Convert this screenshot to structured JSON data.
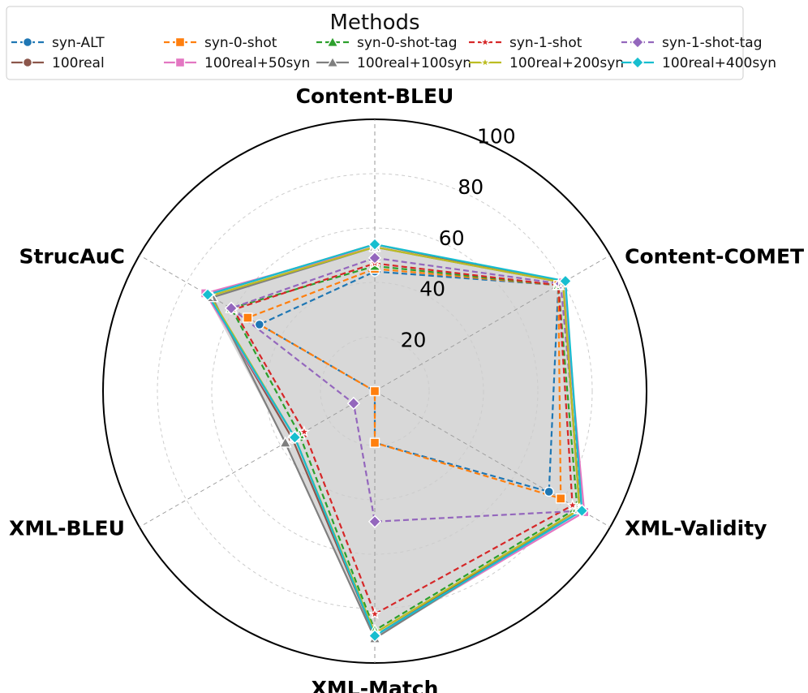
{
  "chart_data": {
    "type": "radar",
    "legend_title": "Methods",
    "legend_position": "top-center",
    "axes": [
      "Content-BLEU",
      "Content-COMET",
      "XML-Validity",
      "XML-Match",
      "XML-BLEU",
      "StrucAuC"
    ],
    "r_range": [
      0,
      100
    ],
    "r_ticks": [
      20,
      40,
      60,
      80,
      100
    ],
    "series": [
      {
        "name": "syn-ALT",
        "color": "#1f77b4",
        "linestyle": "dashed",
        "marker": "circle",
        "values": [
          44,
          78,
          74,
          19,
          0,
          49
        ]
      },
      {
        "name": "syn-0-shot",
        "color": "#ff7f0e",
        "linestyle": "dashed",
        "marker": "square",
        "values": [
          45,
          78,
          79,
          19,
          0,
          54
        ]
      },
      {
        "name": "syn-0-shot-tag",
        "color": "#2ca02c",
        "linestyle": "dashed",
        "marker": "triangle",
        "values": [
          46,
          78,
          86,
          88,
          32,
          61
        ]
      },
      {
        "name": "syn-1-shot",
        "color": "#d62728",
        "linestyle": "dashed",
        "marker": "star",
        "values": [
          47,
          78,
          84,
          82,
          30,
          60
        ]
      },
      {
        "name": "syn-1-shot-tag",
        "color": "#9467bd",
        "linestyle": "dashed",
        "marker": "diamond",
        "values": [
          49,
          79,
          88,
          48,
          9,
          61
        ]
      },
      {
        "name": "100real",
        "color": "#8c564b",
        "linestyle": "solid",
        "marker": "circle",
        "values": [
          54,
          80,
          87,
          90,
          35,
          71
        ]
      },
      {
        "name": "100real+50syn",
        "color": "#e377c2",
        "linestyle": "solid",
        "marker": "square",
        "values": [
          53,
          80,
          89,
          90,
          34,
          72
        ]
      },
      {
        "name": "100real+100syn",
        "color": "#7f7f7f",
        "linestyle": "solid",
        "marker": "triangle",
        "values": [
          53,
          80,
          87,
          91,
          38,
          69
        ]
      },
      {
        "name": "100real+200syn",
        "color": "#bcbd22",
        "linestyle": "solid",
        "marker": "star",
        "values": [
          53,
          80,
          87,
          89,
          34,
          70
        ]
      },
      {
        "name": "100real+400syn",
        "color": "#17becf",
        "linestyle": "solid",
        "marker": "diamond",
        "values": [
          54,
          81,
          88,
          90,
          34,
          71
        ]
      }
    ]
  }
}
